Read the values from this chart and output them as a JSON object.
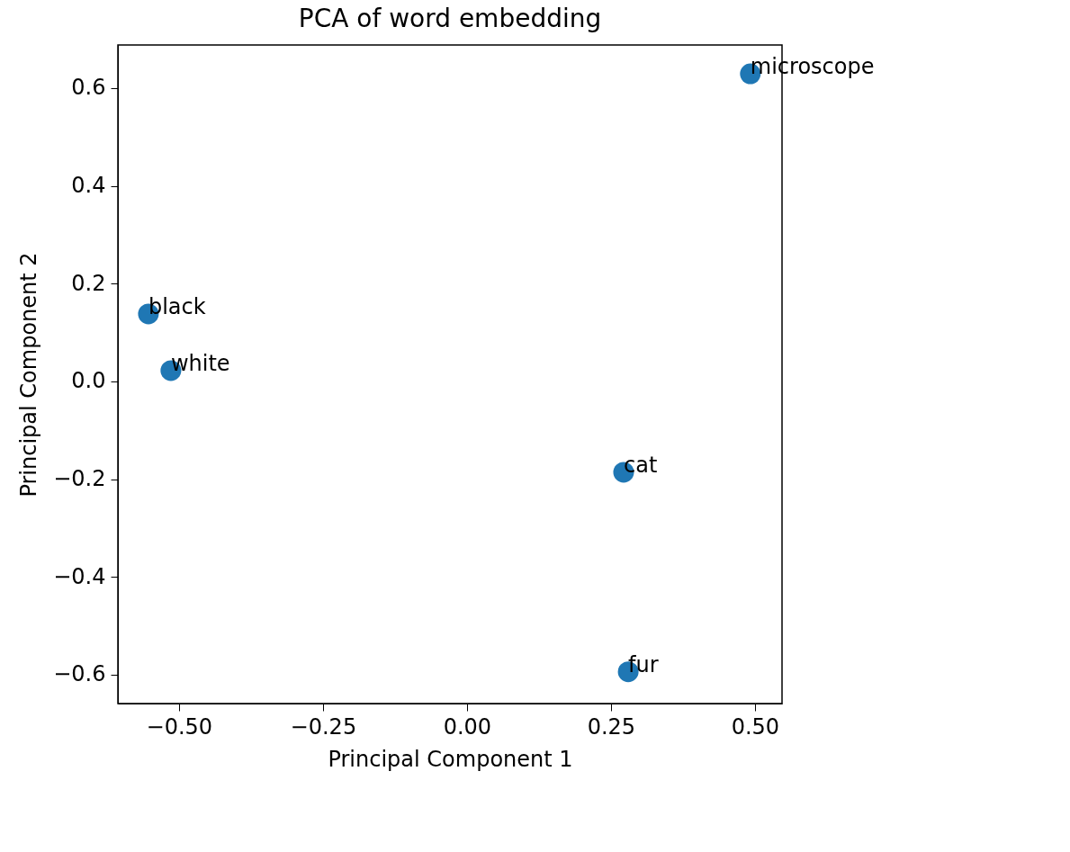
{
  "chart_data": {
    "type": "scatter",
    "title": "PCA of word embedding",
    "xlabel": "Principal Component 1",
    "ylabel": "Principal Component 2",
    "x": [
      0.492,
      -0.553,
      -0.514,
      0.272,
      0.28
    ],
    "series": [
      {
        "color": "#1f77b4",
        "values": [
          0.629,
          0.138,
          0.022,
          -0.186,
          -0.594
        ]
      }
    ],
    "annotations": [
      {
        "text": "microscope",
        "x": 0.492,
        "y": 0.629
      },
      {
        "text": "black",
        "x": -0.553,
        "y": 0.138
      },
      {
        "text": "white",
        "x": -0.514,
        "y": 0.022
      },
      {
        "text": "cat",
        "x": 0.272,
        "y": -0.186
      },
      {
        "text": "fur",
        "x": 0.28,
        "y": -0.594
      }
    ],
    "xlim": [
      -0.606,
      0.547
    ],
    "ylim": [
      -0.659,
      0.688
    ],
    "xticks": [
      {
        "value": -0.5,
        "label": "−0.50"
      },
      {
        "value": -0.25,
        "label": "−0.25"
      },
      {
        "value": 0,
        "label": "0.00"
      },
      {
        "value": 0.25,
        "label": "0.25"
      },
      {
        "value": 0.5,
        "label": "0.50"
      }
    ],
    "yticks": [
      {
        "value": -0.6,
        "label": "−0.6"
      },
      {
        "value": -0.4,
        "label": "−0.4"
      },
      {
        "value": -0.2,
        "label": "−0.2"
      },
      {
        "value": 0,
        "label": "0.0"
      },
      {
        "value": 0.2,
        "label": "0.2"
      },
      {
        "value": 0.4,
        "label": "0.4"
      },
      {
        "value": 0.6,
        "label": "0.6"
      }
    ],
    "grid": false,
    "marker": "circle"
  }
}
